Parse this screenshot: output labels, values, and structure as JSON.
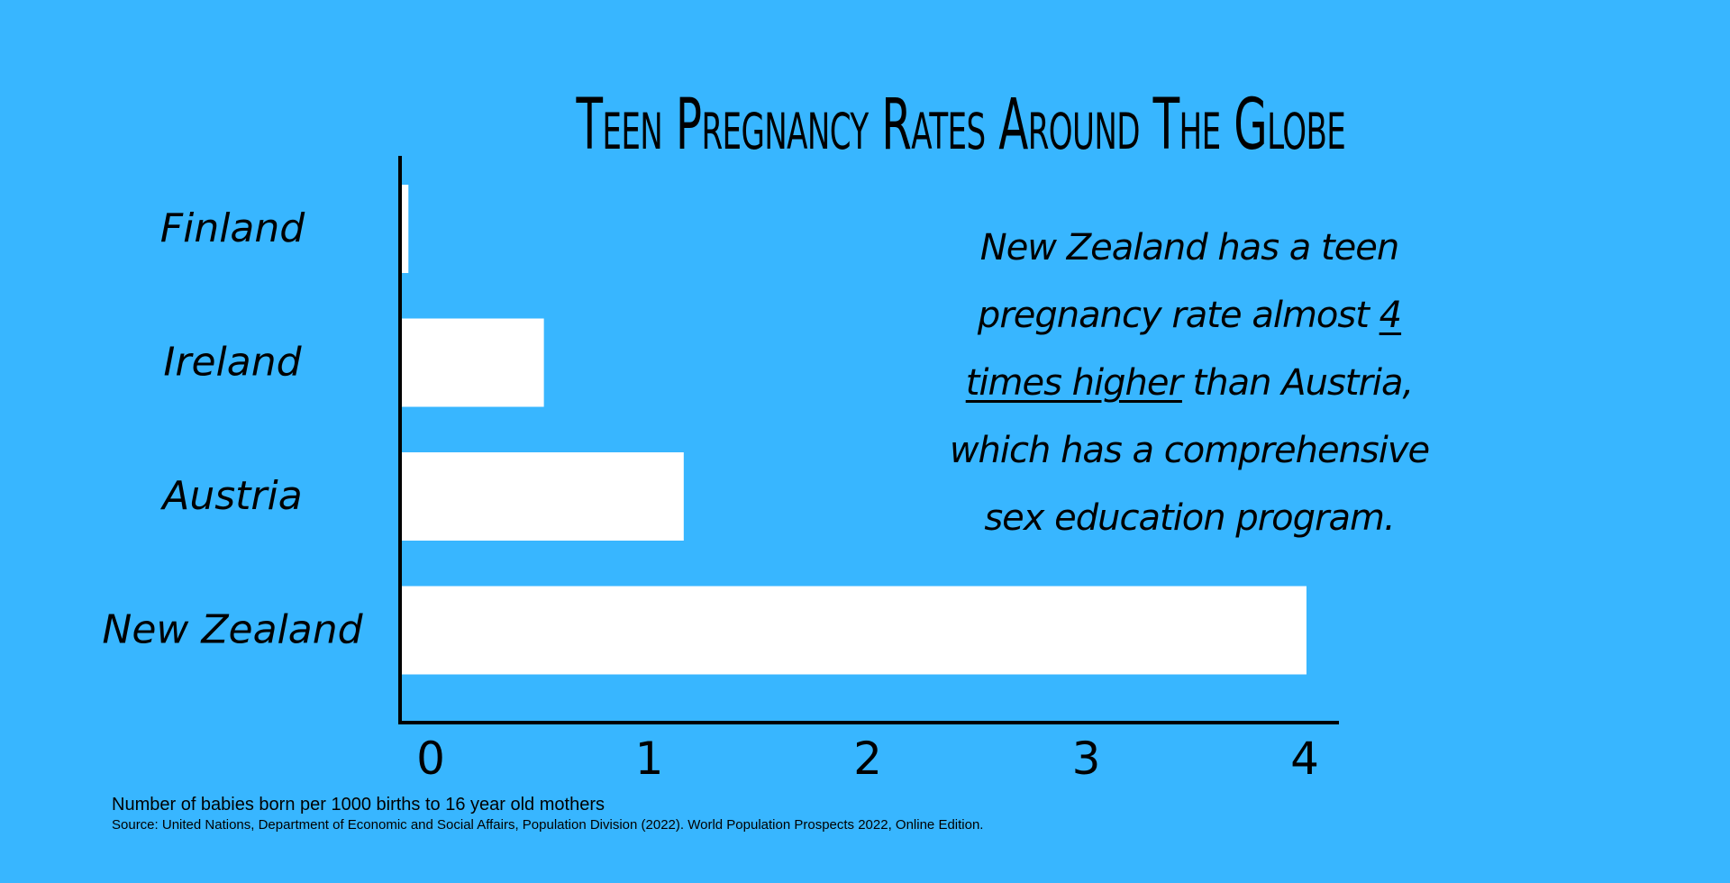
{
  "chart_data": {
    "type": "bar",
    "orientation": "horizontal",
    "title": "Teen Pregnancy Rates Around The Globe",
    "categories": [
      "Finland",
      "Ireland",
      "Austria",
      "New Zealand"
    ],
    "values": [
      0.03,
      0.65,
      1.29,
      4.14
    ],
    "xlim": [
      0,
      4.28
    ],
    "x_ticks": [
      0,
      1,
      2,
      3,
      4
    ],
    "xlabel": "Number of babies born per 1000 births to 16 year old mothers",
    "ylabel": "",
    "grid": false,
    "legend": "none",
    "bar_color": "#ffffff",
    "axis_color": "#000000"
  },
  "annotation": {
    "before": "New Zealand has a teen pregnancy rate almost ",
    "highlight": "4 times higher",
    "after": " than Austria, which has a comprehensive sex education program."
  },
  "source": "Source: United Nations, Department of Economic and Social Affairs, Population Division (2022). World Population Prospects 2022, Online Edition.",
  "colors": {
    "background": "#38b6ff",
    "bars": "#ffffff",
    "text": "#000000"
  }
}
